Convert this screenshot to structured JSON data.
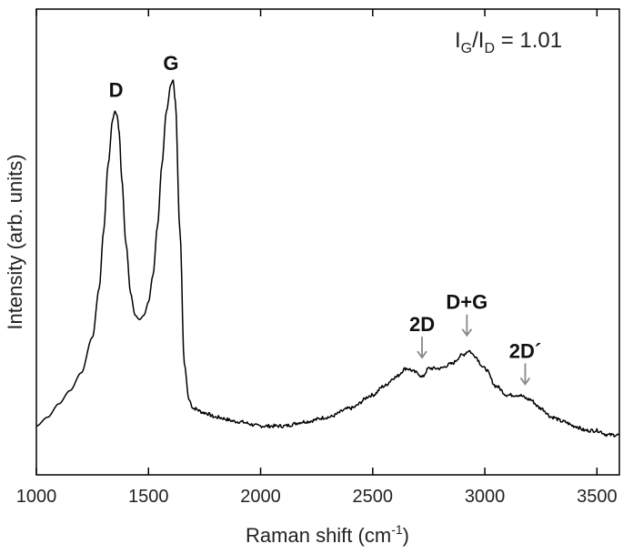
{
  "chart_data": {
    "type": "line",
    "xlabel": "Raman shift (cm",
    "xlabel_sup": "-1",
    "xlabel_suffix": ")",
    "ylabel": "Intensity (arb. units)",
    "xlim": [
      1000,
      3600
    ],
    "ylim": [
      0,
      1.05
    ],
    "x_ticks": [
      1000,
      1500,
      2000,
      2500,
      3000,
      3500
    ],
    "y_ticks_shown": false,
    "grid": false,
    "ratio_annotation": {
      "I1": "I",
      "sub1": "G",
      "slash": "/",
      "I2": "I",
      "sub2": "D",
      "rest": " = 1.01"
    },
    "peak_annotations": [
      {
        "label": "D",
        "x": 1355,
        "y": 0.84,
        "arrow": false
      },
      {
        "label": "G",
        "x": 1600,
        "y": 0.9,
        "arrow": false
      },
      {
        "label": "2D",
        "x": 2720,
        "y": 0.25,
        "arrow": true
      },
      {
        "label": "D+G",
        "x": 2920,
        "y": 0.3,
        "arrow": true
      },
      {
        "label": "2D´",
        "x": 3180,
        "y": 0.19,
        "arrow": true
      }
    ],
    "series": [
      {
        "x": [
          1000,
          1050,
          1100,
          1150,
          1200,
          1250,
          1280,
          1300,
          1320,
          1340,
          1350,
          1360,
          1370,
          1380,
          1400,
          1420,
          1440,
          1460,
          1480,
          1500,
          1520,
          1540,
          1560,
          1580,
          1600,
          1610,
          1620,
          1640,
          1660,
          1680,
          1700,
          1750,
          1800,
          1900,
          2000,
          2100,
          2200,
          2300,
          2400,
          2500,
          2550,
          2600,
          2650,
          2700,
          2720,
          2750,
          2800,
          2850,
          2900,
          2930,
          2950,
          3000,
          3050,
          3100,
          3150,
          3200,
          3250,
          3300,
          3350,
          3400,
          3450,
          3500,
          3550,
          3600
        ],
        "y": [
          0.11,
          0.13,
          0.16,
          0.19,
          0.23,
          0.31,
          0.42,
          0.55,
          0.7,
          0.8,
          0.82,
          0.81,
          0.77,
          0.67,
          0.52,
          0.41,
          0.36,
          0.35,
          0.36,
          0.39,
          0.45,
          0.56,
          0.7,
          0.82,
          0.88,
          0.89,
          0.84,
          0.55,
          0.25,
          0.17,
          0.15,
          0.14,
          0.13,
          0.12,
          0.11,
          0.11,
          0.12,
          0.13,
          0.15,
          0.18,
          0.2,
          0.22,
          0.24,
          0.23,
          0.22,
          0.24,
          0.24,
          0.25,
          0.27,
          0.28,
          0.27,
          0.24,
          0.2,
          0.18,
          0.18,
          0.17,
          0.15,
          0.13,
          0.12,
          0.11,
          0.1,
          0.1,
          0.09,
          0.09
        ]
      }
    ]
  }
}
